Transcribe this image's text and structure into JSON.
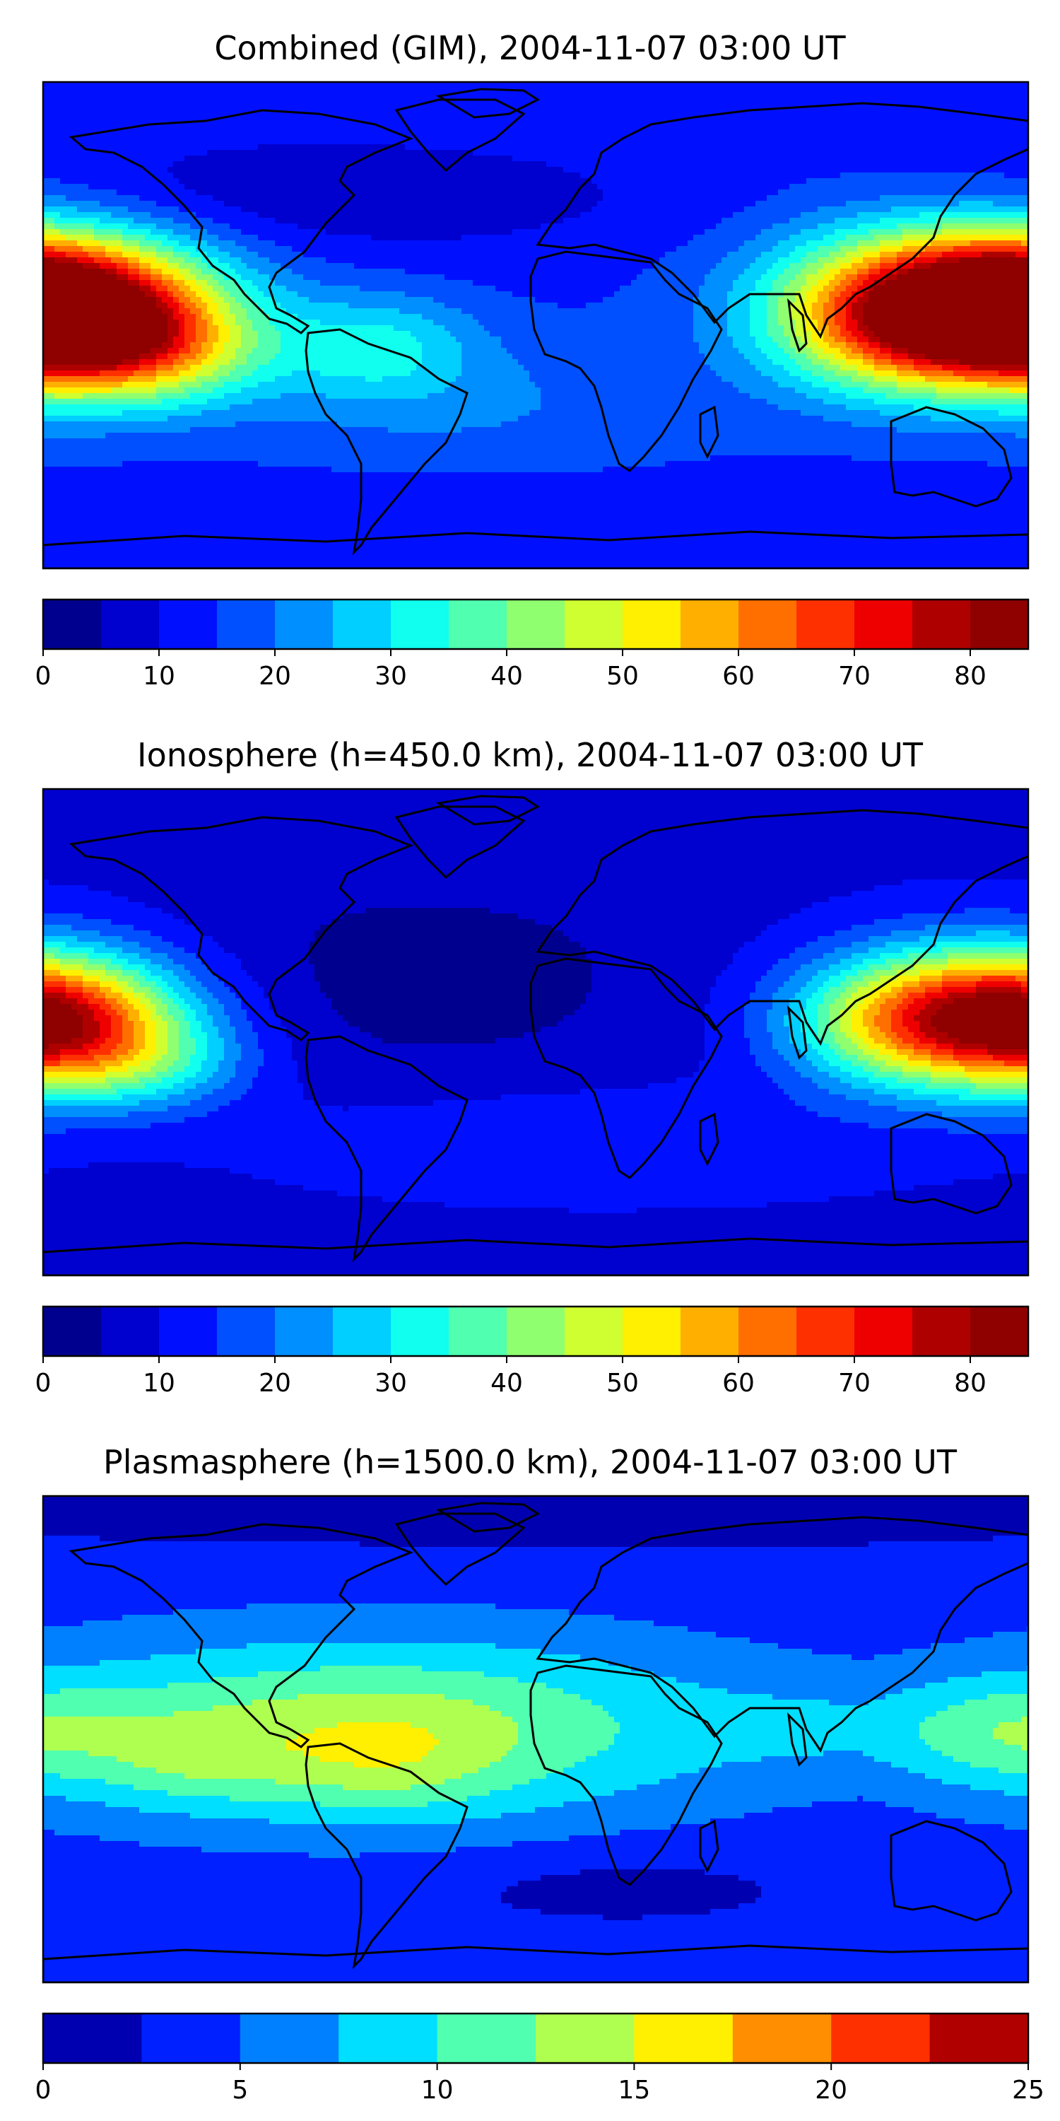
{
  "panels": [
    {
      "title": "Combined (GIM), 2004-11-07 03:00 UT",
      "colorbar": {
        "levels": [
          0,
          5,
          10,
          15,
          20,
          25,
          30,
          35,
          40,
          45,
          50,
          55,
          60,
          65,
          70,
          75,
          80,
          85
        ],
        "colors": [
          "#00008f",
          "#0000cf",
          "#0010ff",
          "#0050ff",
          "#008fff",
          "#00cfff",
          "#10ffef",
          "#50ffaf",
          "#8fff6f",
          "#cfff30",
          "#ffef00",
          "#ffaf00",
          "#ff6f00",
          "#ff3000",
          "#ef0000",
          "#af0000",
          "#8f0000"
        ],
        "tick_values": [
          0,
          10,
          20,
          30,
          40,
          50,
          60,
          70,
          80
        ],
        "tick_labels": [
          "0",
          "10",
          "20",
          "30",
          "40",
          "50",
          "60",
          "70",
          "80"
        ]
      },
      "field": {
        "base": 14,
        "blobs": [
          {
            "lon": -180,
            "lat": 3,
            "amp": 62,
            "slon": 38,
            "slat": 18
          },
          {
            "lon": -138,
            "lat": -10,
            "amp": 22,
            "slon": 28,
            "slat": 14
          },
          {
            "lon": 165,
            "lat": 10,
            "amp": 48,
            "slon": 48,
            "slat": 20
          },
          {
            "lon": 125,
            "lat": 0,
            "amp": 20,
            "slon": 30,
            "slat": 18
          },
          {
            "lon": -58,
            "lat": -8,
            "amp": 16,
            "slon": 26,
            "slat": 14
          },
          {
            "lon": -20,
            "lat": -30,
            "amp": 6,
            "slon": 60,
            "slat": 18
          },
          {
            "lon": -80,
            "lat": 48,
            "amp": -8,
            "slon": 90,
            "slat": 16
          },
          {
            "lon": 0,
            "lat": -70,
            "amp": -4,
            "slon": 120,
            "slat": 10
          }
        ]
      }
    },
    {
      "title": "Ionosphere  (h=450.0 km), 2004-11-07 03:00 UT",
      "colorbar": {
        "levels": [
          0,
          5,
          10,
          15,
          20,
          25,
          30,
          35,
          40,
          45,
          50,
          55,
          60,
          65,
          70,
          75,
          80,
          85
        ],
        "colors": [
          "#00008f",
          "#0000cf",
          "#0010ff",
          "#0050ff",
          "#008fff",
          "#00cfff",
          "#10ffef",
          "#50ffaf",
          "#8fff6f",
          "#cfff30",
          "#ffef00",
          "#ffaf00",
          "#ff6f00",
          "#ff3000",
          "#ef0000",
          "#af0000",
          "#8f0000"
        ],
        "tick_values": [
          0,
          10,
          20,
          30,
          40,
          50,
          60,
          70,
          80
        ],
        "tick_labels": [
          "0",
          "10",
          "20",
          "30",
          "40",
          "50",
          "60",
          "70",
          "80"
        ]
      },
      "field": {
        "base": 9,
        "blobs": [
          {
            "lon": -180,
            "lat": 2,
            "amp": 42,
            "slon": 34,
            "slat": 17
          },
          {
            "lon": -140,
            "lat": -12,
            "amp": 14,
            "slon": 26,
            "slat": 12
          },
          {
            "lon": 165,
            "lat": 8,
            "amp": 40,
            "slon": 42,
            "slat": 18
          },
          {
            "lon": 125,
            "lat": 2,
            "amp": 16,
            "slon": 26,
            "slat": 16
          },
          {
            "lon": -40,
            "lat": 20,
            "amp": -6,
            "slon": 70,
            "slat": 30
          },
          {
            "lon": 20,
            "lat": -40,
            "amp": 6,
            "slon": 80,
            "slat": 14
          }
        ]
      }
    },
    {
      "title": "Plasmasphere (h=1500.0 km), 2004-11-07 03:00 UT",
      "colorbar": {
        "levels": [
          0,
          2.5,
          5,
          7.5,
          10,
          12.5,
          15,
          17.5,
          20,
          22.5,
          25
        ],
        "colors": [
          "#0000b0",
          "#0020ff",
          "#0080ff",
          "#00dfff",
          "#50ffaf",
          "#afff50",
          "#ffef00",
          "#ff8f00",
          "#ff3000",
          "#b00000"
        ],
        "tick_values": [
          0,
          5,
          10,
          15,
          20,
          25
        ],
        "tick_labels": [
          "0",
          "5",
          "10",
          "15",
          "20",
          "25"
        ]
      },
      "field": {
        "base": 3.5,
        "blobs": [
          {
            "lon": -60,
            "lat": 4,
            "amp": 10,
            "slon": 95,
            "slat": 24
          },
          {
            "lon": -55,
            "lat": -10,
            "amp": 3,
            "slon": 30,
            "slat": 14
          },
          {
            "lon": -125,
            "lat": -8,
            "amp": 3,
            "slon": 25,
            "slat": 12
          },
          {
            "lon": 170,
            "lat": 2,
            "amp": 5,
            "slon": 30,
            "slat": 14
          },
          {
            "lon": 105,
            "lat": 5,
            "amp": 2,
            "slon": 30,
            "slat": 14
          },
          {
            "lon": 30,
            "lat": -55,
            "amp": -2,
            "slon": 50,
            "slat": 10
          },
          {
            "lon": 0,
            "lat": 82,
            "amp": -2,
            "slon": 200,
            "slat": 10
          }
        ]
      }
    }
  ]
}
